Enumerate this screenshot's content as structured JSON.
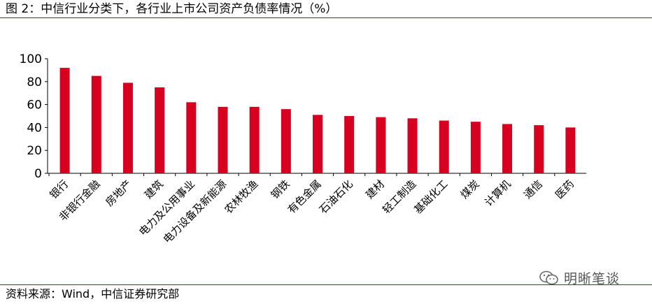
{
  "title": "图 2：中信行业分类下，各行业上市公司资产负债率情况（%）",
  "source": "资料来源：Wind，中信证券研究部",
  "watermark": "明晰笔谈",
  "watermark_icon": "wechat-icon",
  "colors": {
    "bar": "#d7001e",
    "rule": "#c0001a"
  },
  "chart_data": {
    "type": "bar",
    "title": "图 2：中信行业分类下，各行业上市公司资产负债率情况（%）",
    "xlabel": "",
    "ylabel": "",
    "ylim": [
      0,
      100
    ],
    "yticks": [
      0,
      20,
      40,
      60,
      80,
      100
    ],
    "grid": false,
    "categories": [
      "银行",
      "非银行金融",
      "房地产",
      "建筑",
      "电力及公用事业",
      "电力设备及新能源",
      "农林牧渔",
      "钢铁",
      "有色金属",
      "石油石化",
      "建材",
      "轻工制造",
      "基础化工",
      "煤炭",
      "计算机",
      "通信",
      "医药"
    ],
    "values": [
      92,
      85,
      79,
      75,
      62,
      58,
      58,
      56,
      51,
      50,
      49,
      48,
      46,
      45,
      43,
      42,
      40
    ]
  }
}
